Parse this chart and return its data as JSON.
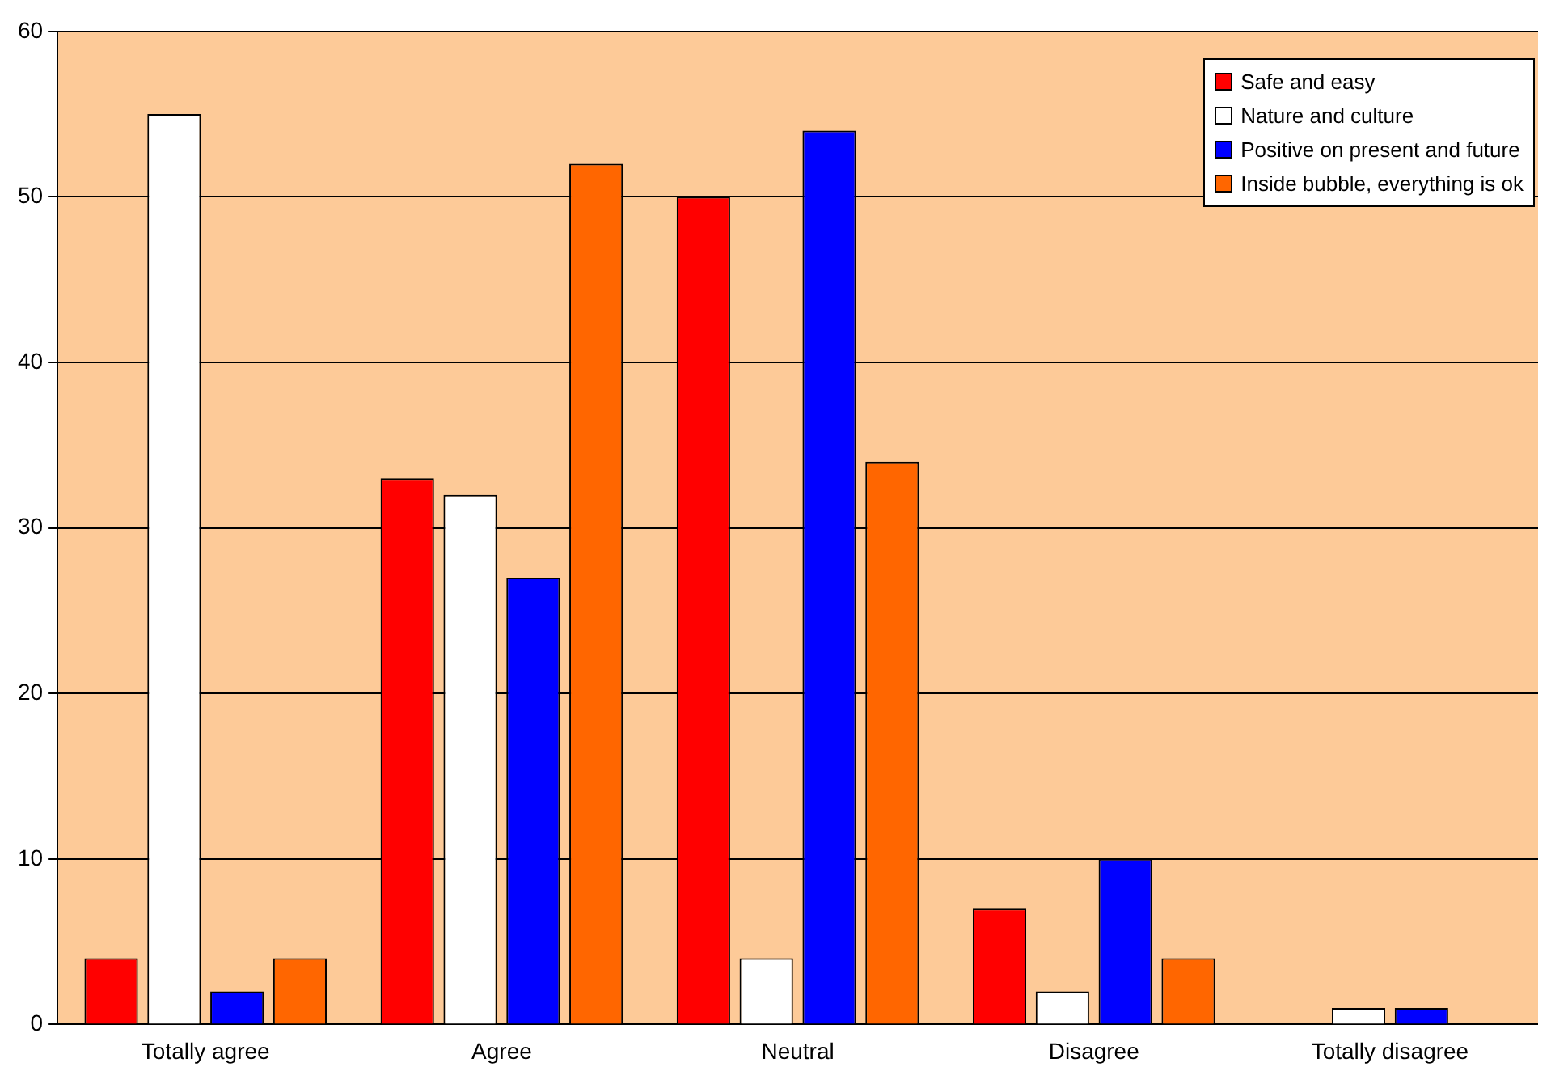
{
  "chart_data": {
    "type": "bar",
    "categories": [
      "Totally agree",
      "Agree",
      "Neutral",
      "Disagree",
      "Totally disagree"
    ],
    "series": [
      {
        "name": "Safe and easy",
        "color": "#ff0000",
        "values": [
          4,
          33,
          50,
          7,
          0
        ]
      },
      {
        "name": "Nature and culture",
        "color": "#ffffff",
        "values": [
          55,
          32,
          4,
          2,
          1
        ]
      },
      {
        "name": "Positive on present and future",
        "color": "#0000ff",
        "values": [
          2,
          27,
          54,
          10,
          1
        ]
      },
      {
        "name": "Inside bubble, everything is ok",
        "color": "#ff6600",
        "values": [
          4,
          52,
          34,
          4,
          0
        ]
      }
    ],
    "ylim": [
      0,
      60
    ],
    "yticks": [
      0,
      10,
      20,
      30,
      40,
      50,
      60
    ],
    "grid": "y",
    "legend": "top right"
  }
}
